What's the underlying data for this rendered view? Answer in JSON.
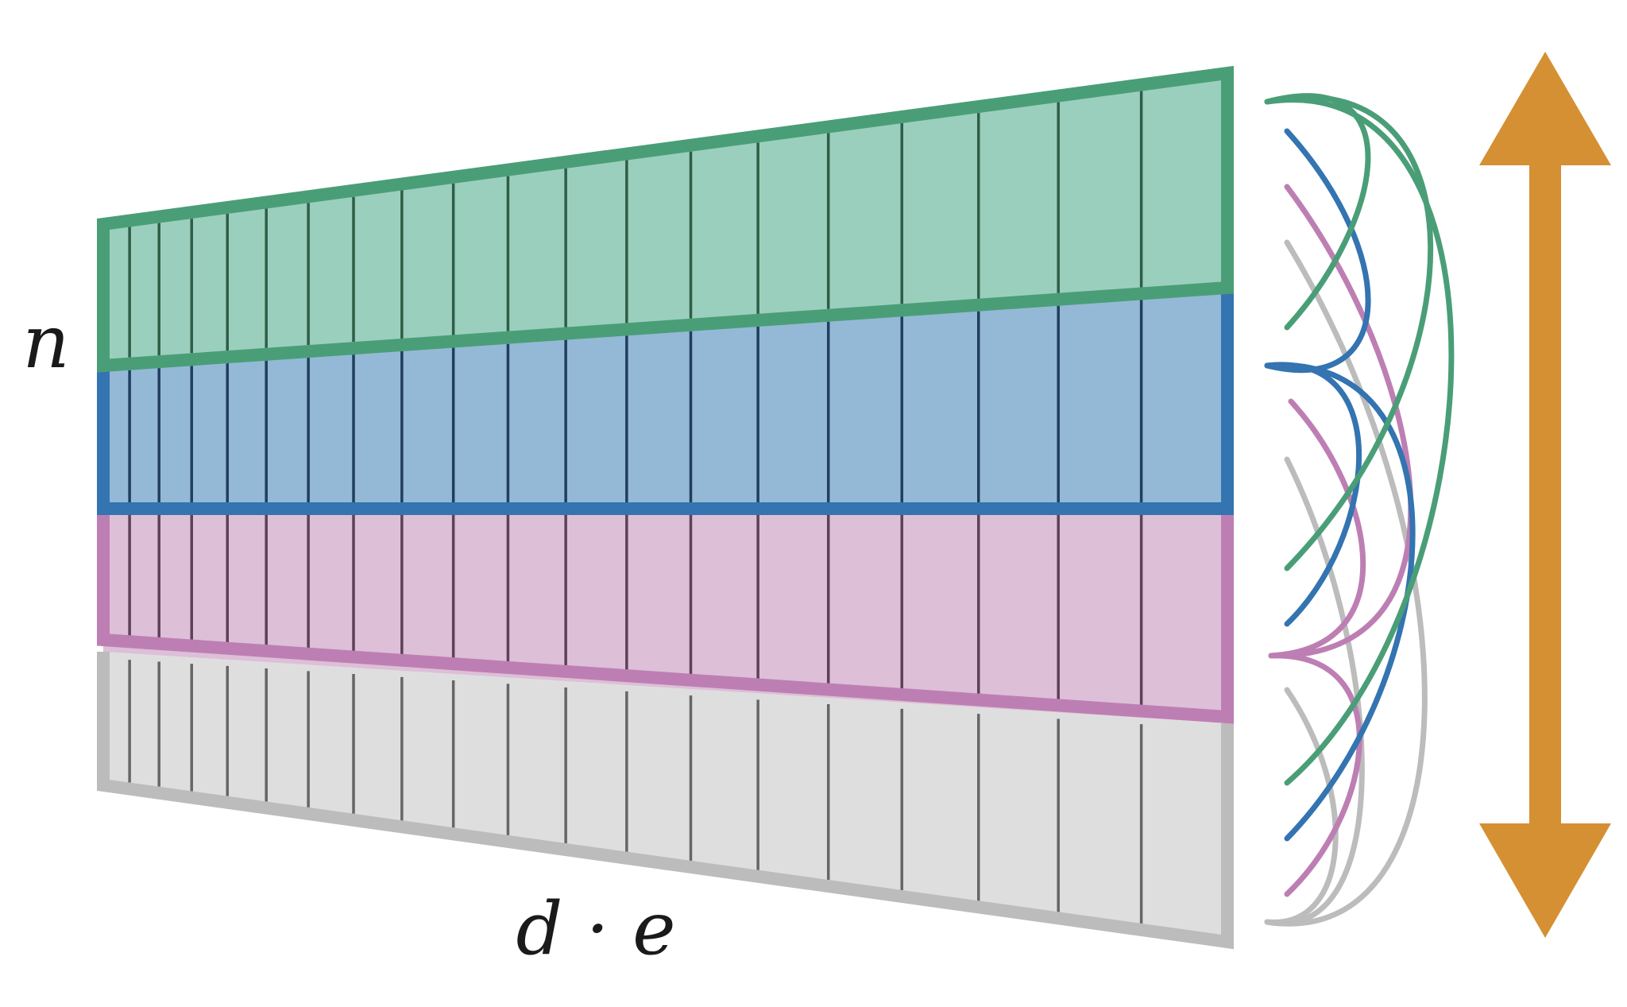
{
  "labels": {
    "rows": "n",
    "columns": "d · e"
  },
  "bands": [
    {
      "name": "green",
      "fill": "#9bcfbd",
      "stroke": "#4a9e77",
      "divider": "#2e5e46"
    },
    {
      "name": "blue",
      "fill": "#94b9d6",
      "stroke": "#3374b1",
      "divider": "#203e5e"
    },
    {
      "name": "pink",
      "fill": "#ddbfd7",
      "stroke": "#bd7fb3",
      "divider": "#5e4058"
    },
    {
      "name": "gray",
      "fill": "#dedede",
      "stroke": "#bcbcbc",
      "divider": "#666666"
    }
  ],
  "column_count": 20,
  "arrow_colors": {
    "green": "#4a9e77",
    "blue": "#3374b1",
    "pink": "#bd7fb3",
    "gray": "#bcbcbc",
    "orange": "#d49033"
  }
}
